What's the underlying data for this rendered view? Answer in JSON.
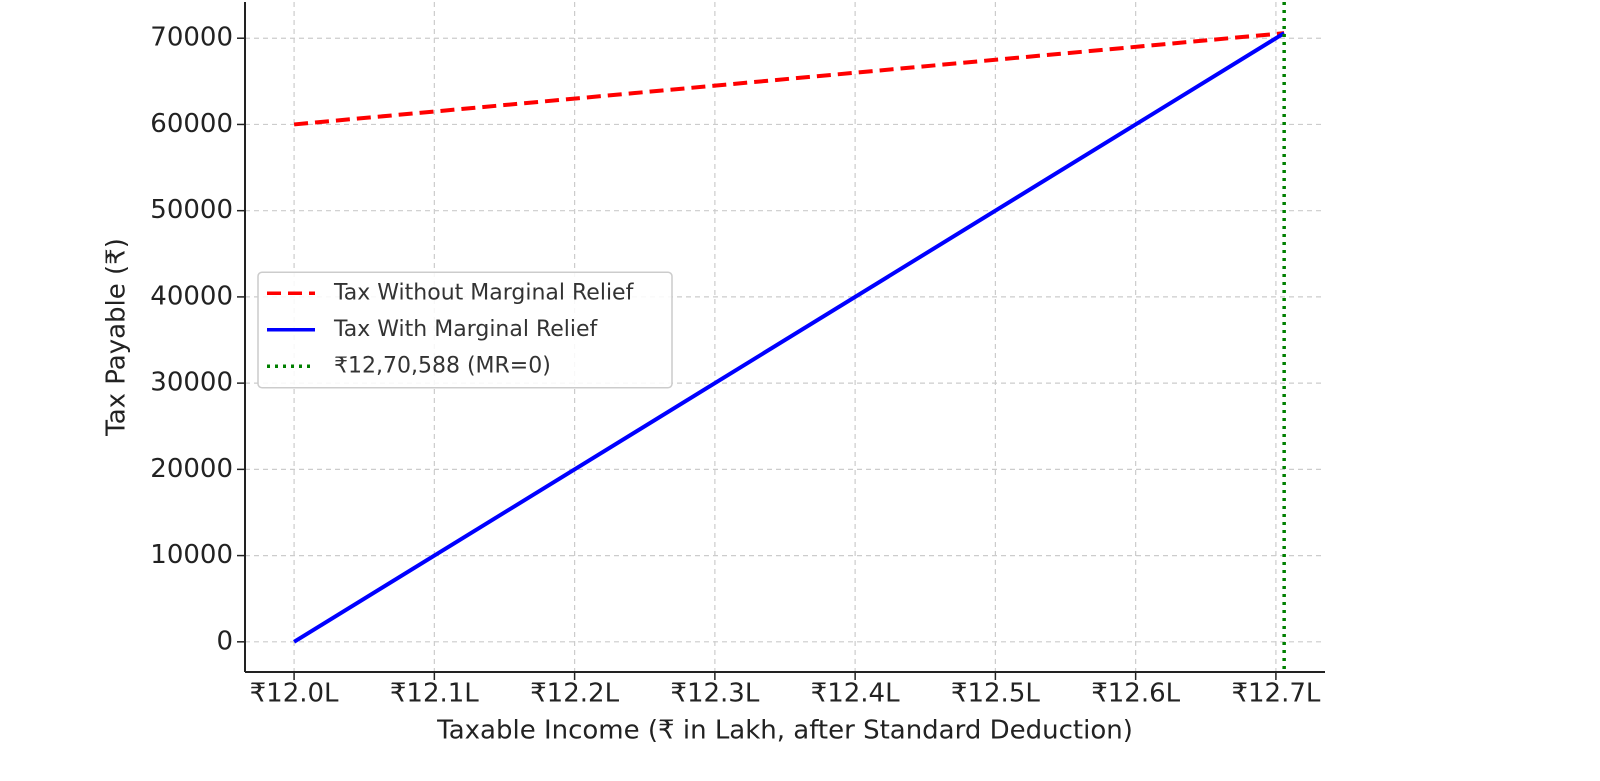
{
  "chart_data": {
    "type": "line",
    "xlabel": "Taxable Income (₹ in Lakh, after Standard Deduction)",
    "ylabel": "Tax Payable (₹)",
    "x": [
      1200000,
      1270588
    ],
    "series": [
      {
        "name": "Tax Without Marginal Relief",
        "color": "#ff0000",
        "style": "dashed",
        "values": [
          60000,
          70588
        ]
      },
      {
        "name": "Tax With Marginal Relief",
        "color": "#0000ff",
        "style": "solid",
        "values": [
          0,
          70588
        ]
      }
    ],
    "vlines": [
      {
        "name": "₹12,70,588 (MR=0)",
        "color": "#008000",
        "style": "dotted",
        "x": 1270588
      }
    ],
    "xlim": [
      1196500,
      1273500
    ],
    "ylim": [
      -3500,
      74200
    ],
    "xticks": [
      {
        "value": 1200000,
        "label": "₹12.0L"
      },
      {
        "value": 1210000,
        "label": "₹12.1L"
      },
      {
        "value": 1220000,
        "label": "₹12.2L"
      },
      {
        "value": 1230000,
        "label": "₹12.3L"
      },
      {
        "value": 1240000,
        "label": "₹12.4L"
      },
      {
        "value": 1250000,
        "label": "₹12.5L"
      },
      {
        "value": 1260000,
        "label": "₹12.6L"
      },
      {
        "value": 1270000,
        "label": "₹12.7L"
      }
    ],
    "yticks": [
      0,
      10000,
      20000,
      30000,
      40000,
      50000,
      60000,
      70000
    ],
    "grid": true,
    "legend": "center left"
  }
}
